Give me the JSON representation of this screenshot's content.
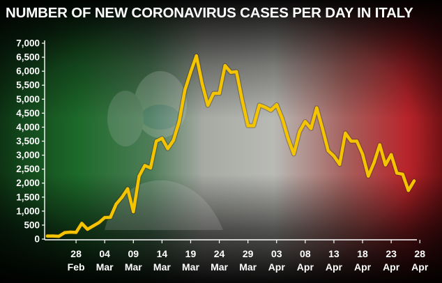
{
  "chart_data": {
    "type": "line",
    "title": "NUMBER OF NEW CORONAVIRUS CASES PER DAY IN ITALY",
    "xlabel": "",
    "ylabel": "",
    "ylim": [
      0,
      7000
    ],
    "yticks": [
      "0",
      "500",
      "1,000",
      "1,500",
      "2,000",
      "2,500",
      "3,000",
      "3,500",
      "4,000",
      "4,500",
      "5,000",
      "5,500",
      "6,000",
      "6,500",
      "7,000"
    ],
    "ytick_values": [
      0,
      500,
      1000,
      1500,
      2000,
      2500,
      3000,
      3500,
      4000,
      4500,
      5000,
      5500,
      6000,
      6500,
      7000
    ],
    "xticks": [
      {
        "day": "28",
        "month": "Feb",
        "index": 5
      },
      {
        "day": "04",
        "month": "Mar",
        "index": 10
      },
      {
        "day": "09",
        "month": "Mar",
        "index": 15
      },
      {
        "day": "14",
        "month": "Mar",
        "index": 20
      },
      {
        "day": "19",
        "month": "Mar",
        "index": 25
      },
      {
        "day": "24",
        "month": "Mar",
        "index": 30
      },
      {
        "day": "29",
        "month": "Mar",
        "index": 35
      },
      {
        "day": "03",
        "month": "Apr",
        "index": 40
      },
      {
        "day": "08",
        "month": "Apr",
        "index": 45
      },
      {
        "day": "13",
        "month": "Apr",
        "index": 50
      },
      {
        "day": "18",
        "month": "Apr",
        "index": 55
      },
      {
        "day": "23",
        "month": "Apr",
        "index": 60
      },
      {
        "day": "28",
        "month": "Apr",
        "index": 65
      }
    ],
    "grid": false,
    "line_color": "#f5c400",
    "series": [
      {
        "values": [
          110,
          110,
          100,
          230,
          250,
          240,
          560,
          350,
          470,
          590,
          770,
          780,
          1250,
          1490,
          1800,
          980,
          2250,
          2630,
          2540,
          3500,
          3600,
          3230,
          3530,
          4200,
          5330,
          5970,
          6550,
          5560,
          4780,
          5210,
          5210,
          6200,
          5960,
          5980,
          4960,
          4050,
          4050,
          4790,
          4710,
          4600,
          4800,
          4300,
          3600,
          3040,
          3840,
          4200,
          3950,
          4690,
          3950,
          3160,
          2970,
          2670,
          3790,
          3500,
          3500,
          3040,
          2250,
          2730,
          3370,
          2650,
          3020,
          2360,
          2320,
          1740,
          2080
        ]
      }
    ]
  }
}
